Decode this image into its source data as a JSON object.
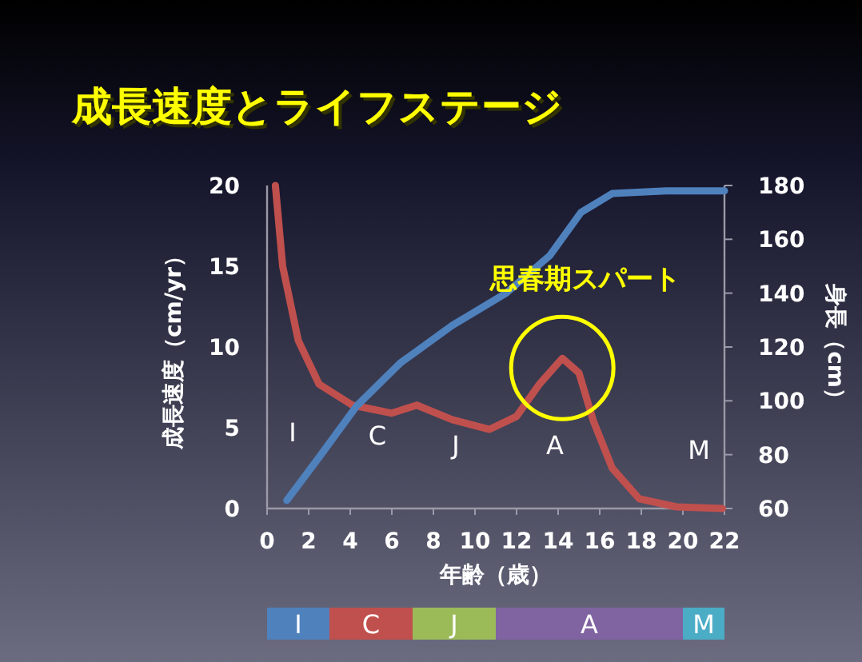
{
  "chart_data": [
    {
      "type": "line",
      "title": "成長速度とライフステージ",
      "xlabel": "年齢（歳）",
      "ylabel": "成長速度（cm/yr）",
      "y2label": "身長（cm）",
      "xlim": [
        0,
        22
      ],
      "xticks": [
        0,
        2,
        4,
        6,
        8,
        10,
        12,
        14,
        16,
        18,
        20,
        22
      ],
      "ylim": [
        0,
        20
      ],
      "yticks": [
        0,
        5,
        10,
        15,
        20
      ],
      "y2lim": [
        60,
        180
      ],
      "y2ticks": [
        60,
        80,
        100,
        120,
        140,
        160,
        180
      ],
      "series": [
        {
          "color": "#c0504d",
          "x": [
            0.4,
            0.75,
            1.5,
            2.5,
            4.1,
            6.0,
            7.2,
            8.9,
            10.7,
            12.0,
            13.1,
            14.2,
            15.0,
            15.7,
            16.6,
            17.9,
            19.7,
            21.9
          ],
          "values": [
            20,
            15,
            10.4,
            7.7,
            6.4,
            5.9,
            6.4,
            5.5,
            4.9,
            5.7,
            7.7,
            9.3,
            8.4,
            5.4,
            2.5,
            0.6,
            0.1,
            0
          ]
        },
        {
          "color": "#4f81bd",
          "axis": "y2",
          "x": [
            0.95,
            2.5,
            4.3,
            6.4,
            8.9,
            11.5,
            13.6,
            15.1,
            16.6,
            19.2,
            22
          ],
          "values": [
            63,
            79,
            98,
            114,
            128,
            140,
            154,
            170,
            177,
            178,
            178
          ]
        }
      ],
      "annotations": [
        "I",
        "C",
        "J",
        "A",
        "M",
        "思春期スパート"
      ]
    },
    {
      "type": "bar",
      "orientation": "horizontal",
      "stacked": true,
      "categories": [
        null
      ],
      "xlim": [
        0,
        22
      ],
      "series": [
        {
          "name": "I",
          "color": "#4f81bd",
          "values": [
            3
          ]
        },
        {
          "name": "C",
          "color": "#c0504d",
          "values": [
            4
          ]
        },
        {
          "name": "J",
          "color": "#9bbb59",
          "values": [
            4
          ]
        },
        {
          "name": "A",
          "color": "#8064a2",
          "values": [
            9
          ]
        },
        {
          "name": "M",
          "color": "#4bacc6",
          "values": [
            2
          ]
        }
      ]
    }
  ]
}
